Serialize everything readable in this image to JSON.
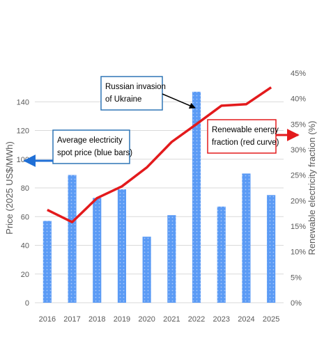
{
  "chart_data": {
    "type": "bar",
    "categories": [
      "2016",
      "2017",
      "2018",
      "2019",
      "2020",
      "2021",
      "2022",
      "2023",
      "2024",
      "2025"
    ],
    "series": [
      {
        "values": [
          57,
          89,
          73,
          79,
          46,
          61,
          147,
          67,
          90,
          75
        ],
        "axis": "left",
        "kind": "bar",
        "color": "#5b9bf5"
      },
      {
        "values": [
          18.2,
          15.8,
          20.5,
          22.8,
          26.5,
          31.5,
          35.0,
          38.6,
          38.9,
          42.2
        ],
        "axis": "right",
        "kind": "line",
        "color": "#e31a1c"
      }
    ],
    "ylabel": "Price (2025 US$/MWh)",
    "ylabel_right": "Renewable electricity fraction (%)",
    "ylim": [
      0,
      160
    ],
    "y_ticks": [
      0,
      20,
      40,
      60,
      80,
      100,
      120,
      140
    ],
    "ylim_right": [
      0,
      45
    ],
    "y_ticks_right": [
      "0%",
      "5%",
      "10%",
      "15%",
      "20%",
      "25%",
      "30%",
      "35%",
      "40%",
      "45%"
    ],
    "grid": true,
    "annotations": [
      {
        "lines": [
          "Russian invasion",
          "of Ukraine"
        ],
        "border": "#2e75b6",
        "arrow": "black",
        "target": "2022"
      },
      {
        "lines": [
          "Average electricity",
          "spot price (blue bars)"
        ],
        "border": "#2e75b6",
        "arrow": "blue",
        "points": "left-axis"
      },
      {
        "lines": [
          "Renewable energy",
          "fraction (red curve)"
        ],
        "border": "#e31a1c",
        "arrow": "red",
        "points": "right-axis"
      }
    ]
  }
}
